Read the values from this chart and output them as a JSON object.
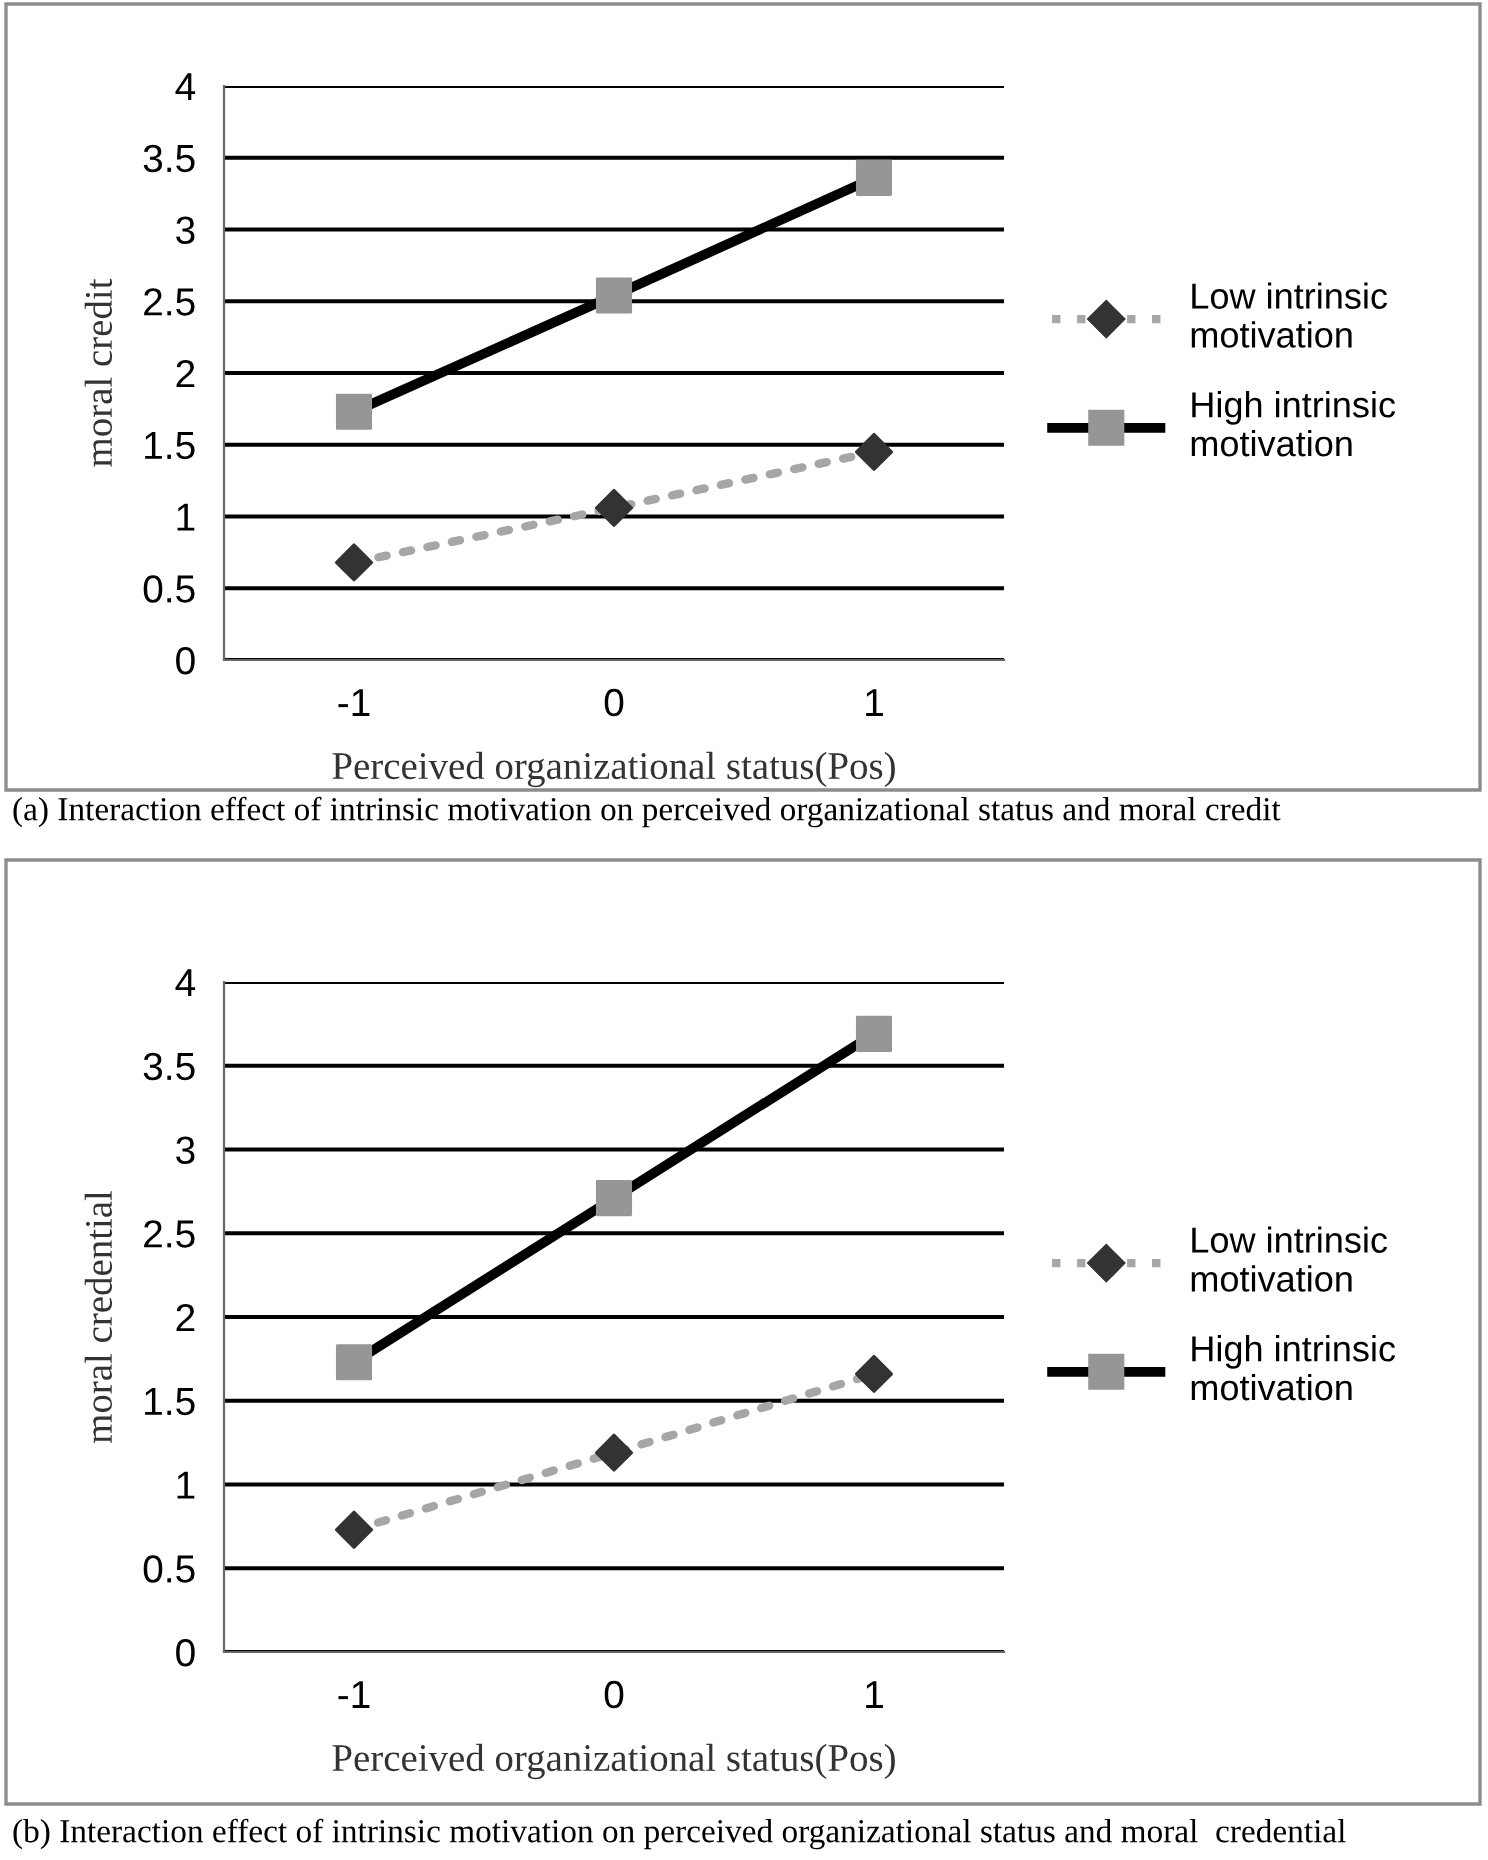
{
  "chart_data": [
    {
      "type": "line",
      "categories": [
        "-1",
        "0",
        "1"
      ],
      "xlabel": "Perceived organizational status(Pos)",
      "ylabel": "moral credit",
      "series": [
        {
          "name": "Low intrinsic\nmotivation",
          "color": "#a6a6a6",
          "colors": [
            "#333333",
            "#333333",
            "#333333"
          ],
          "values": [
            0.68,
            1.06,
            1.45
          ],
          "marker": "diamond",
          "line_style": "dotted"
        },
        {
          "name": "High intrinsic\nmotivation",
          "color": "#000000",
          "colors": [
            "#969696",
            "#969696",
            "#969696"
          ],
          "values": [
            1.73,
            2.54,
            3.36
          ],
          "marker": "square",
          "line_style": "solid"
        }
      ],
      "ylim": [
        0,
        4
      ],
      "yticks": [
        0,
        0.5,
        1,
        1.5,
        2,
        2.5,
        3,
        3.5,
        4
      ],
      "grid": "y",
      "legend": "right",
      "annotations": [
        "(a) Interaction effect of intrinsic motivation on perceived organizational status and moral credit"
      ]
    },
    {
      "type": "line",
      "categories": [
        "-1",
        "0",
        "1"
      ],
      "xlabel": "Perceived organizational status(Pos)",
      "ylabel": "moral credential",
      "series": [
        {
          "name": "Low intrinsic\nmotivation",
          "color": "#a6a6a6",
          "colors": [
            "#333333",
            "#333333",
            "#333333"
          ],
          "values": [
            0.73,
            1.19,
            1.66
          ],
          "marker": "diamond",
          "line_style": "dotted"
        },
        {
          "name": "High intrinsic\nmotivation",
          "color": "#000000",
          "colors": [
            "#969696",
            "#969696",
            "#969696"
          ],
          "values": [
            1.73,
            2.71,
            3.69
          ],
          "marker": "square",
          "line_style": "solid"
        }
      ],
      "ylim": [
        0,
        4
      ],
      "yticks": [
        0,
        0.5,
        1,
        1.5,
        2,
        2.5,
        3,
        3.5,
        4
      ],
      "grid": "y",
      "legend": "right",
      "annotations": [
        "(b) Interaction effect of intrinsic motivation on perceived organizational status and moral  credential"
      ]
    }
  ]
}
